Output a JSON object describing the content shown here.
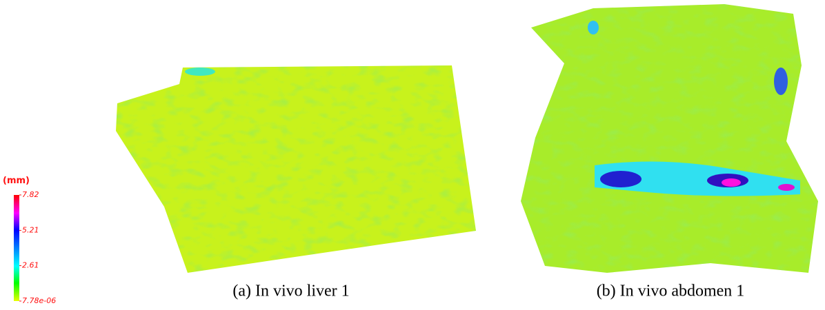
{
  "colorbar": {
    "unit": "(mm)",
    "ticks": [
      {
        "value": 7.82,
        "label": "7.82"
      },
      {
        "value": 5.21,
        "label": "5.21"
      },
      {
        "value": 2.61,
        "label": "2.61"
      },
      {
        "value": 7.78e-06,
        "label": "7.78e-06"
      }
    ]
  },
  "panels": [
    {
      "caption": "(a) In vivo liver 1"
    },
    {
      "caption": "(b) In vivo abdomen 1"
    }
  ]
}
